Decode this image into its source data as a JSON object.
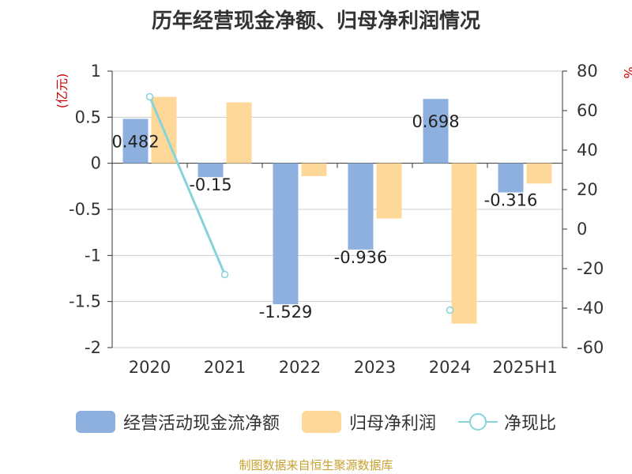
{
  "title": "历年经营现金净额、归母净利润情况",
  "source_note": "制图数据来自恒生聚源数据库",
  "colors": {
    "cash_flow": "#8eb0de",
    "net_profit": "#fdd898",
    "ratio": "#86d4da",
    "left_unit": "#cc0000",
    "source": "#c8a030"
  },
  "chart_data": {
    "type": "bar",
    "title": "历年经营现金净额、归母净利润情况",
    "categories": [
      "2020",
      "2021",
      "2022",
      "2023",
      "2024",
      "2025H1"
    ],
    "left_axis": {
      "label": "(亿元)",
      "ylim": [
        -2,
        1
      ],
      "ticks": [
        "1",
        "0.5",
        "0",
        "-0.5",
        "-1",
        "-1.5",
        "-2"
      ],
      "tick_values": [
        1,
        0.5,
        0,
        -0.5,
        -1,
        -1.5,
        -2
      ]
    },
    "right_axis": {
      "label": "%",
      "ylim": [
        -60,
        80
      ],
      "ticks": [
        "80",
        "60",
        "40",
        "20",
        "0",
        "-20",
        "-40",
        "-60"
      ],
      "tick_values": [
        80,
        60,
        40,
        20,
        0,
        -20,
        -40,
        -60
      ]
    },
    "grid": true,
    "legend_position": "bottom",
    "series": [
      {
        "name": "经营活动现金流净额",
        "type": "bar",
        "axis": "left",
        "values": [
          0.482,
          -0.15,
          -1.529,
          -0.936,
          0.698,
          -0.316
        ],
        "labels": [
          "0.482",
          "-0.15",
          "-1.529",
          "-0.936",
          "0.698",
          "-0.316"
        ]
      },
      {
        "name": "归母净利润",
        "type": "bar",
        "axis": "left",
        "values": [
          0.72,
          0.66,
          -0.14,
          -0.6,
          -1.74,
          -0.22
        ]
      },
      {
        "name": "净现比",
        "type": "line",
        "axis": "right",
        "values": [
          67,
          -23,
          null,
          null,
          -41,
          null
        ]
      }
    ]
  }
}
